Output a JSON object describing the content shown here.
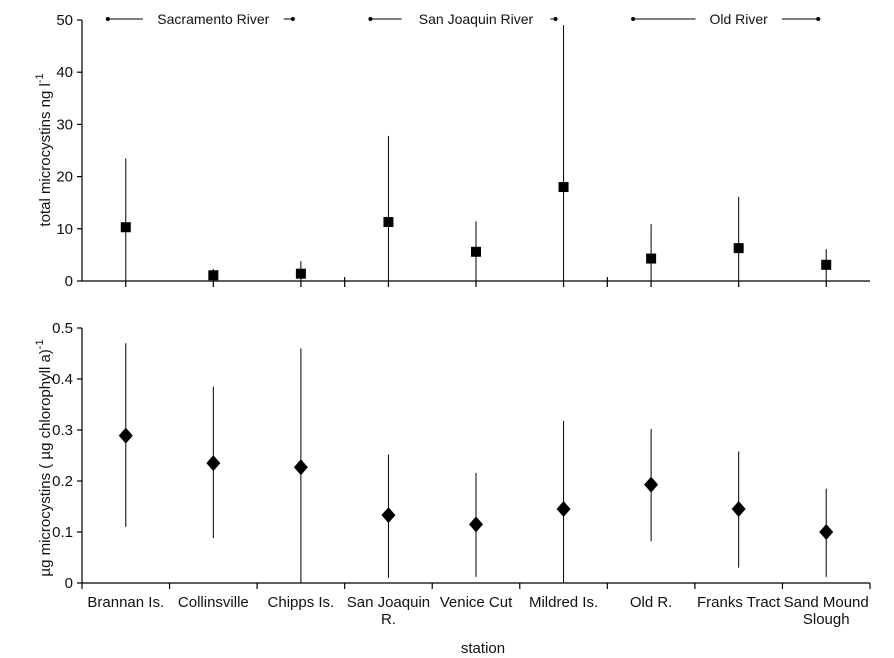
{
  "chart_data": [
    {
      "type": "scatter",
      "ylabel": "total microcystins ng l",
      "ylabel_sup": "-1",
      "ylim": [
        0,
        50
      ],
      "yticks": [
        "0",
        "10",
        "20",
        "30",
        "40",
        "50"
      ],
      "marker": "square",
      "categories": [
        "Brannan Is.",
        "Collinsville",
        "Chipps Is.",
        "San Joaquin R.",
        "Venice Cut",
        "Mildred Is.",
        "Old R.",
        "Franks Tract",
        "Sand Mound Slough"
      ],
      "values": [
        10.3,
        1.1,
        1.4,
        11.3,
        5.6,
        18.0,
        4.3,
        6.3,
        3.1
      ],
      "error_low": [
        0,
        0,
        0,
        0,
        0,
        0,
        0,
        0,
        0
      ],
      "error_high": [
        23.5,
        2.3,
        3.8,
        27.8,
        11.4,
        49.0,
        10.9,
        16.1,
        6.1
      ],
      "groups": [
        {
          "label": "Sacramento River",
          "from": 0,
          "to": 2
        },
        {
          "label": "San Joaquin River",
          "from": 3,
          "to": 5
        },
        {
          "label": "Old River",
          "from": 6,
          "to": 8
        }
      ]
    },
    {
      "type": "scatter",
      "ylabel": "µg microcystins ( µg chlorophyll a)",
      "ylabel_sup": "-1",
      "xlabel": "station",
      "ylim": [
        0,
        0.5
      ],
      "yticks": [
        "0",
        "0.1",
        "0.2",
        "0.3",
        "0.4",
        "0.5"
      ],
      "marker": "diamond",
      "categories": [
        "Brannan Is.",
        "Collinsville",
        "Chipps Is.",
        "San Joaquin R.",
        "Venice Cut",
        "Mildred Is.",
        "Old R.",
        "Franks Tract",
        "Sand Mound Slough"
      ],
      "category_lines": [
        [
          "Brannan Is."
        ],
        [
          "Collinsville"
        ],
        [
          "Chipps Is."
        ],
        [
          "San Joaquin",
          "R."
        ],
        [
          "Venice Cut"
        ],
        [
          "Mildred Is."
        ],
        [
          "Old R."
        ],
        [
          "Franks Tract"
        ],
        [
          "Sand Mound",
          "Slough"
        ]
      ],
      "values": [
        0.289,
        0.235,
        0.227,
        0.133,
        0.115,
        0.145,
        0.193,
        0.145,
        0.1
      ],
      "error_low": [
        0.11,
        0.088,
        0.0,
        0.01,
        0.012,
        0.0,
        0.082,
        0.03,
        0.012
      ],
      "error_high": [
        0.47,
        0.385,
        0.46,
        0.252,
        0.216,
        0.318,
        0.302,
        0.258,
        0.185
      ]
    }
  ]
}
